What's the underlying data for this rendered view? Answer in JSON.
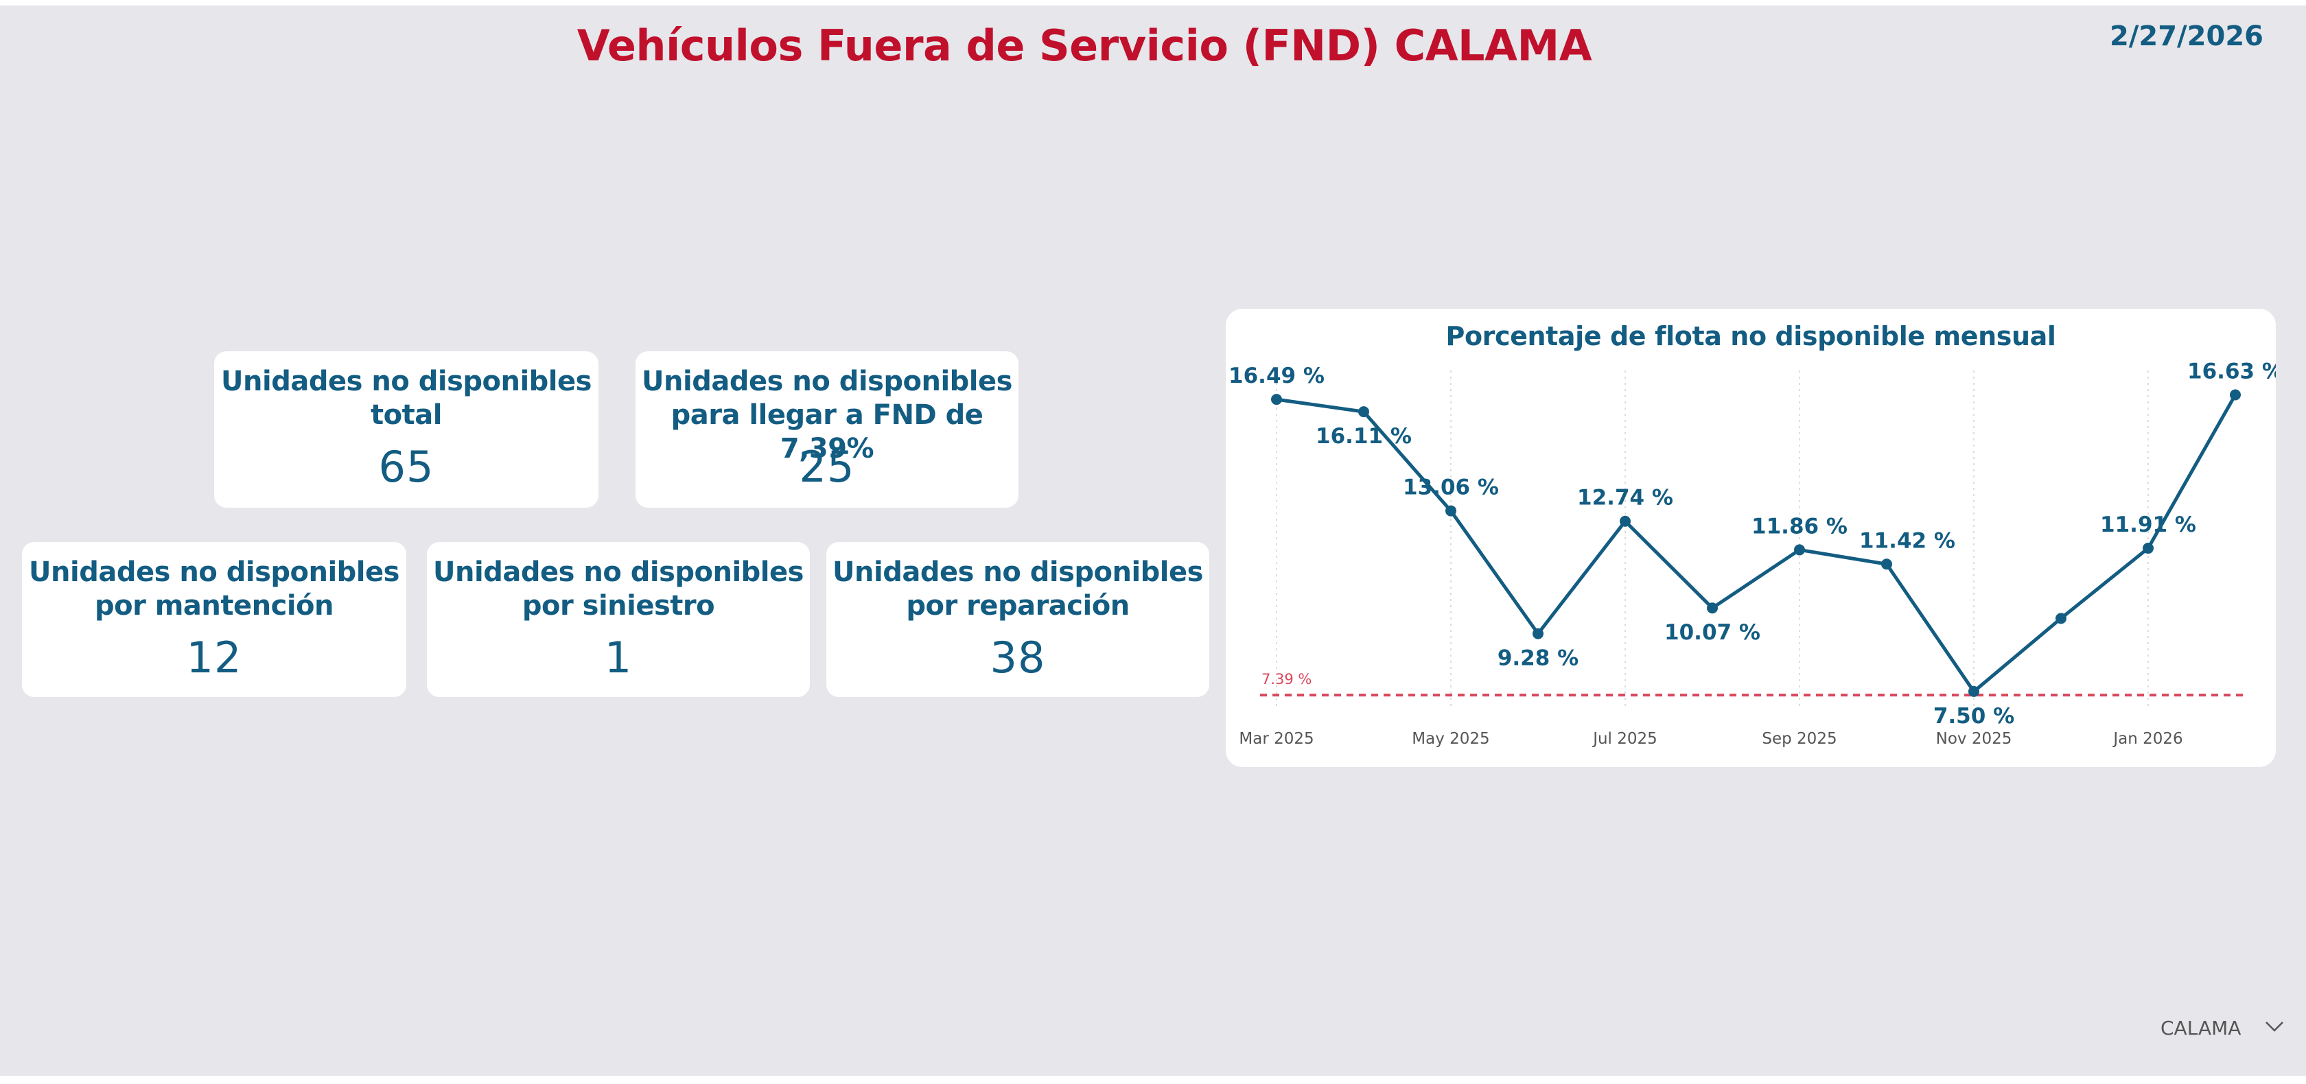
{
  "header": {
    "title": "Vehículos Fuera de Servicio (FND) CALAMA",
    "date": "2/27/2026"
  },
  "cards": {
    "total": {
      "label_line1": "Unidades no disponibles",
      "label_line2": "total",
      "value": "65"
    },
    "to_target": {
      "label_line1": "Unidades no disponibles",
      "label_line2": "para llegar a FND de 7,39%",
      "value": "25"
    },
    "maintenance": {
      "label_line1": "Unidades no disponibles",
      "label_line2": "por mantención",
      "value": "12"
    },
    "accident": {
      "label_line1": "Unidades no disponibles",
      "label_line2": "por siniestro",
      "value": "1"
    },
    "repair": {
      "label_line1": "Unidades no disponibles",
      "label_line2": "por reparación",
      "value": "38"
    }
  },
  "chart_data": {
    "type": "line",
    "title": "Porcentaje de flota no disponible mensual",
    "x": [
      "2025-03",
      "2025-04",
      "2025-05",
      "2025-06",
      "2025-07",
      "2025-08",
      "2025-09",
      "2025-10",
      "2025-11",
      "2025-12",
      "2026-01",
      "2026-02"
    ],
    "values": [
      16.49,
      16.11,
      13.06,
      9.28,
      12.74,
      10.07,
      11.86,
      11.42,
      7.5,
      9.75,
      11.91,
      16.63
    ],
    "data_labels": [
      "16.49 %",
      "16.11 %",
      "13.06 %",
      "9.28 %",
      "12.74 %",
      "10.07 %",
      "11.86 %",
      "11.42 %",
      "7.50 %",
      "",
      "11.91 %",
      "16.63 %"
    ],
    "tick_labels": [
      "Mar 2025",
      "May 2025",
      "Jul 2025",
      "Sep 2025",
      "Nov 2025",
      "Jan 2026"
    ],
    "tick_indices": [
      0,
      2,
      4,
      6,
      8,
      10
    ],
    "reference_line": {
      "value": 7.39,
      "label": "7.39 %",
      "color": "#d9475c"
    },
    "series_color": "#135c82",
    "ylim": [
      6.4,
      17.0
    ],
    "xlabel": "",
    "ylabel": ""
  },
  "slicer": {
    "selected": "CALAMA",
    "icon": "chevron-down-icon"
  }
}
